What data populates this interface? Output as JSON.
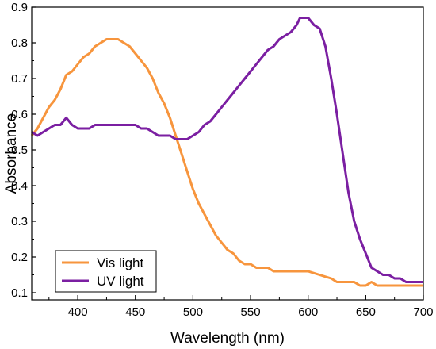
{
  "chart_data": {
    "type": "line",
    "title": "",
    "xlabel": "Wavelength (nm)",
    "ylabel": "Absorbance",
    "xlim": [
      360,
      700
    ],
    "ylim": [
      0.08,
      0.9
    ],
    "x_ticks": [
      400,
      450,
      500,
      550,
      600,
      650,
      700
    ],
    "x_tick_labels": [
      "400",
      "450",
      "500",
      "550",
      "600",
      "650",
      "700"
    ],
    "y_ticks": [
      0.1,
      0.2,
      0.3,
      0.4,
      0.5,
      0.6,
      0.7,
      0.8,
      0.9
    ],
    "y_tick_labels": [
      "0.1",
      "0.2",
      "0.3",
      "0.4",
      "0.5",
      "0.6",
      "0.7",
      "0.8",
      "0.9"
    ],
    "grid": false,
    "legend_position": "bottom-left",
    "series": [
      {
        "name": "Vis light",
        "color": "#f7953d",
        "points": [
          [
            360,
            0.54
          ],
          [
            365,
            0.56
          ],
          [
            370,
            0.59
          ],
          [
            375,
            0.62
          ],
          [
            380,
            0.64
          ],
          [
            385,
            0.67
          ],
          [
            390,
            0.71
          ],
          [
            395,
            0.72
          ],
          [
            400,
            0.74
          ],
          [
            405,
            0.76
          ],
          [
            410,
            0.77
          ],
          [
            415,
            0.79
          ],
          [
            420,
            0.8
          ],
          [
            425,
            0.81
          ],
          [
            430,
            0.81
          ],
          [
            435,
            0.81
          ],
          [
            440,
            0.8
          ],
          [
            445,
            0.79
          ],
          [
            450,
            0.77
          ],
          [
            455,
            0.75
          ],
          [
            460,
            0.73
          ],
          [
            465,
            0.7
          ],
          [
            470,
            0.66
          ],
          [
            475,
            0.63
          ],
          [
            480,
            0.59
          ],
          [
            485,
            0.54
          ],
          [
            490,
            0.49
          ],
          [
            495,
            0.44
          ],
          [
            500,
            0.39
          ],
          [
            505,
            0.35
          ],
          [
            510,
            0.32
          ],
          [
            515,
            0.29
          ],
          [
            520,
            0.26
          ],
          [
            525,
            0.24
          ],
          [
            530,
            0.22
          ],
          [
            535,
            0.21
          ],
          [
            540,
            0.19
          ],
          [
            545,
            0.18
          ],
          [
            550,
            0.18
          ],
          [
            555,
            0.17
          ],
          [
            560,
            0.17
          ],
          [
            565,
            0.17
          ],
          [
            570,
            0.16
          ],
          [
            575,
            0.16
          ],
          [
            580,
            0.16
          ],
          [
            590,
            0.16
          ],
          [
            600,
            0.16
          ],
          [
            605,
            0.155
          ],
          [
            610,
            0.15
          ],
          [
            615,
            0.145
          ],
          [
            620,
            0.14
          ],
          [
            625,
            0.13
          ],
          [
            630,
            0.13
          ],
          [
            640,
            0.13
          ],
          [
            645,
            0.12
          ],
          [
            650,
            0.12
          ],
          [
            655,
            0.13
          ],
          [
            660,
            0.12
          ],
          [
            670,
            0.12
          ],
          [
            680,
            0.12
          ],
          [
            690,
            0.12
          ],
          [
            700,
            0.12
          ]
        ]
      },
      {
        "name": "UV light",
        "color": "#7b1fa2",
        "points": [
          [
            360,
            0.55
          ],
          [
            365,
            0.54
          ],
          [
            370,
            0.55
          ],
          [
            375,
            0.56
          ],
          [
            380,
            0.57
          ],
          [
            385,
            0.57
          ],
          [
            390,
            0.59
          ],
          [
            395,
            0.57
          ],
          [
            400,
            0.56
          ],
          [
            405,
            0.56
          ],
          [
            410,
            0.56
          ],
          [
            415,
            0.57
          ],
          [
            420,
            0.57
          ],
          [
            430,
            0.57
          ],
          [
            440,
            0.57
          ],
          [
            450,
            0.57
          ],
          [
            455,
            0.56
          ],
          [
            460,
            0.56
          ],
          [
            465,
            0.55
          ],
          [
            470,
            0.54
          ],
          [
            475,
            0.54
          ],
          [
            480,
            0.54
          ],
          [
            485,
            0.53
          ],
          [
            490,
            0.53
          ],
          [
            495,
            0.53
          ],
          [
            500,
            0.54
          ],
          [
            505,
            0.55
          ],
          [
            510,
            0.57
          ],
          [
            515,
            0.58
          ],
          [
            520,
            0.6
          ],
          [
            525,
            0.62
          ],
          [
            530,
            0.64
          ],
          [
            535,
            0.66
          ],
          [
            540,
            0.68
          ],
          [
            545,
            0.7
          ],
          [
            550,
            0.72
          ],
          [
            555,
            0.74
          ],
          [
            560,
            0.76
          ],
          [
            565,
            0.78
          ],
          [
            570,
            0.79
          ],
          [
            575,
            0.81
          ],
          [
            580,
            0.82
          ],
          [
            585,
            0.83
          ],
          [
            590,
            0.85
          ],
          [
            593,
            0.87
          ],
          [
            600,
            0.87
          ],
          [
            605,
            0.85
          ],
          [
            610,
            0.84
          ],
          [
            615,
            0.79
          ],
          [
            620,
            0.7
          ],
          [
            625,
            0.6
          ],
          [
            630,
            0.49
          ],
          [
            635,
            0.38
          ],
          [
            640,
            0.3
          ],
          [
            645,
            0.25
          ],
          [
            650,
            0.21
          ],
          [
            655,
            0.17
          ],
          [
            660,
            0.16
          ],
          [
            665,
            0.15
          ],
          [
            670,
            0.15
          ],
          [
            675,
            0.14
          ],
          [
            680,
            0.14
          ],
          [
            685,
            0.13
          ],
          [
            690,
            0.13
          ],
          [
            700,
            0.13
          ]
        ]
      }
    ]
  }
}
